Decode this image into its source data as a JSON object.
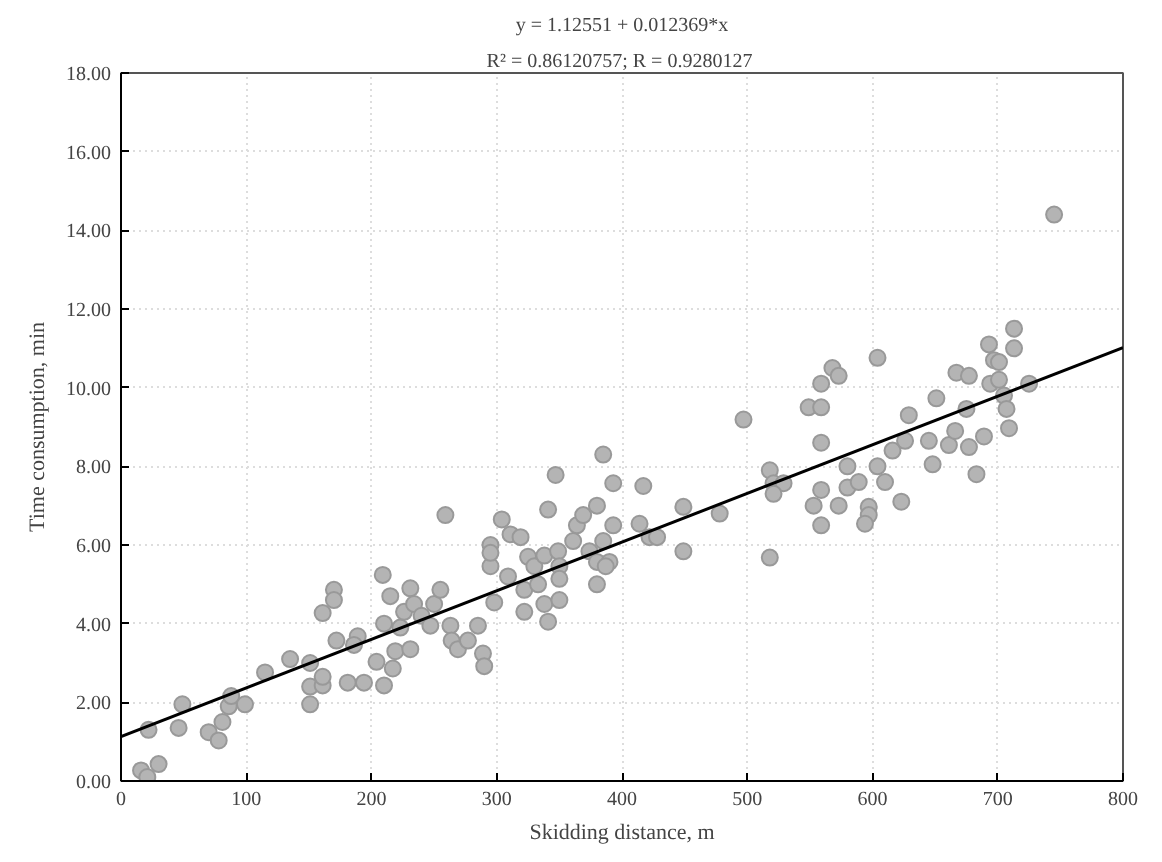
{
  "chart_data": {
    "type": "scatter",
    "title": "y = 1.12551 + 0.012369*x",
    "subtitle": "R² = 0.86120757;  R = 0.9280127",
    "xlabel": "Skidding distance, m",
    "ylabel": "Time consumption, min",
    "xlim": [
      0,
      800
    ],
    "ylim": [
      0,
      18
    ],
    "xticks": [
      0,
      100,
      200,
      300,
      400,
      500,
      600,
      700,
      800
    ],
    "yticks": [
      {
        "value": 0,
        "label": "0.00"
      },
      {
        "value": 2,
        "label": "2.00"
      },
      {
        "value": 4,
        "label": "4.00"
      },
      {
        "value": 6,
        "label": "6.00"
      },
      {
        "value": 8,
        "label": "8.00"
      },
      {
        "value": 10,
        "label": "10.00"
      },
      {
        "value": 12,
        "label": "12.00"
      },
      {
        "value": 14,
        "label": "14.00"
      },
      {
        "value": 16,
        "label": "16.00"
      },
      {
        "value": 18,
        "label": "18.00"
      }
    ],
    "grid": true,
    "series": [
      {
        "color": "#b4b4b4",
        "marker": "circle",
        "x": [
          16,
          21,
          30,
          22,
          46,
          49,
          70,
          78,
          81,
          86,
          88,
          99,
          115,
          135,
          151,
          151,
          151,
          161,
          161,
          161,
          170,
          170,
          172,
          181,
          189,
          186,
          194,
          204,
          209,
          210,
          210,
          217,
          215,
          219,
          223,
          226,
          231,
          231,
          234,
          240,
          247,
          250,
          255,
          259,
          263,
          264,
          269,
          277,
          285,
          289,
          290,
          295,
          295,
          298,
          304,
          311,
          319,
          295,
          309,
          325,
          330,
          338,
          322,
          322,
          338,
          341,
          333,
          341,
          347,
          349,
          350,
          350,
          350,
          361,
          364,
          369,
          380,
          374,
          380,
          380,
          385,
          390,
          393,
          393,
          385,
          387,
          417,
          414,
          422,
          428,
          449,
          449,
          478,
          497,
          518,
          518,
          521,
          529,
          521,
          549,
          559,
          559,
          568,
          573,
          559,
          559,
          553,
          559,
          573,
          580,
          580,
          589,
          597,
          597,
          594,
          604,
          604,
          610,
          616,
          623,
          626,
          629,
          645,
          648,
          651,
          661,
          666,
          667,
          677,
          675,
          677,
          683,
          689,
          693,
          697,
          701,
          694,
          701,
          705,
          707,
          709,
          713,
          713,
          725,
          745
        ],
        "values": [
          0.27,
          0.1,
          0.43,
          1.3,
          1.35,
          1.95,
          1.24,
          1.03,
          1.5,
          1.9,
          2.16,
          1.95,
          2.76,
          3.1,
          3.0,
          2.4,
          1.95,
          2.43,
          2.65,
          4.27,
          4.86,
          4.6,
          3.57,
          2.5,
          3.68,
          3.46,
          2.5,
          3.03,
          5.24,
          4.0,
          2.43,
          2.86,
          4.7,
          3.3,
          3.9,
          4.3,
          4.9,
          3.35,
          4.5,
          4.2,
          3.95,
          4.5,
          4.86,
          6.76,
          3.95,
          3.57,
          3.35,
          3.57,
          3.95,
          3.24,
          2.92,
          5.46,
          6.0,
          4.54,
          6.65,
          6.27,
          6.2,
          5.8,
          5.2,
          5.7,
          5.46,
          5.73,
          4.86,
          4.3,
          4.5,
          4.05,
          5.0,
          6.9,
          7.78,
          5.84,
          5.46,
          5.14,
          4.6,
          6.1,
          6.5,
          6.76,
          7.0,
          5.84,
          5.57,
          5.0,
          6.1,
          5.57,
          7.57,
          6.5,
          8.3,
          5.46,
          7.5,
          6.54,
          6.2,
          6.2,
          6.97,
          5.84,
          6.8,
          9.19,
          5.68,
          7.9,
          7.57,
          7.57,
          7.3,
          9.5,
          9.5,
          10.1,
          10.5,
          10.3,
          8.6,
          7.4,
          7.0,
          6.5,
          7.0,
          8.0,
          7.46,
          7.6,
          6.97,
          6.76,
          6.54,
          10.76,
          8.0,
          7.6,
          8.4,
          7.1,
          8.65,
          9.3,
          8.65,
          8.05,
          9.73,
          8.54,
          8.9,
          10.38,
          10.3,
          9.46,
          8.49,
          7.8,
          8.76,
          11.1,
          10.7,
          10.65,
          10.1,
          10.2,
          9.8,
          9.46,
          8.97,
          11.0,
          11.5,
          10.1,
          14.4
        ]
      },
      {
        "type": "line",
        "marker": "none",
        "color": "#000000",
        "x": [
          0,
          800
        ],
        "values": [
          1.13,
          11.02
        ]
      }
    ]
  }
}
